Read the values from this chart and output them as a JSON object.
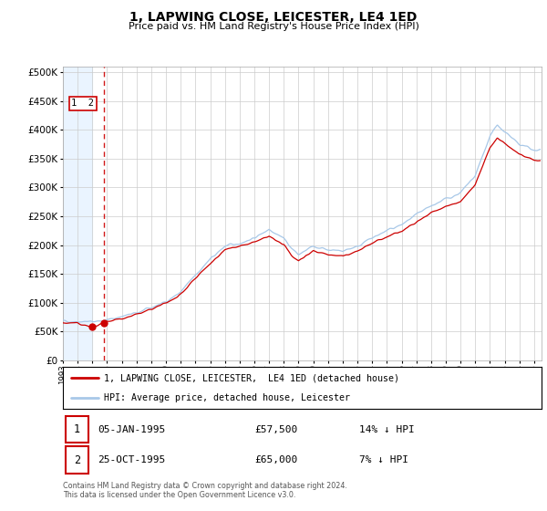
{
  "title": "1, LAPWING CLOSE, LEICESTER, LE4 1ED",
  "subtitle": "Price paid vs. HM Land Registry's House Price Index (HPI)",
  "sale1_date": "05-JAN-1995",
  "sale1_price": 57500,
  "sale1_label": "14% ↓ HPI",
  "sale2_date": "25-OCT-1995",
  "sale2_price": 65000,
  "sale2_label": "7% ↓ HPI",
  "sale1_x": 1995.01,
  "sale2_x": 1995.81,
  "legend_line1": "1, LAPWING CLOSE, LEICESTER,  LE4 1ED (detached house)",
  "legend_line2": "HPI: Average price, detached house, Leicester",
  "footer1": "Contains HM Land Registry data © Crown copyright and database right 2024.",
  "footer2": "This data is licensed under the Open Government Licence v3.0.",
  "hpi_color": "#a8c8e8",
  "price_color": "#cc0000",
  "marker_color": "#cc0000",
  "shaded_color": "#ddeeff",
  "dashed_line_color": "#cc0000",
  "ylim_max": 510000,
  "ylim_min": 0,
  "xlim_min": 1993,
  "xlim_max": 2025.5
}
